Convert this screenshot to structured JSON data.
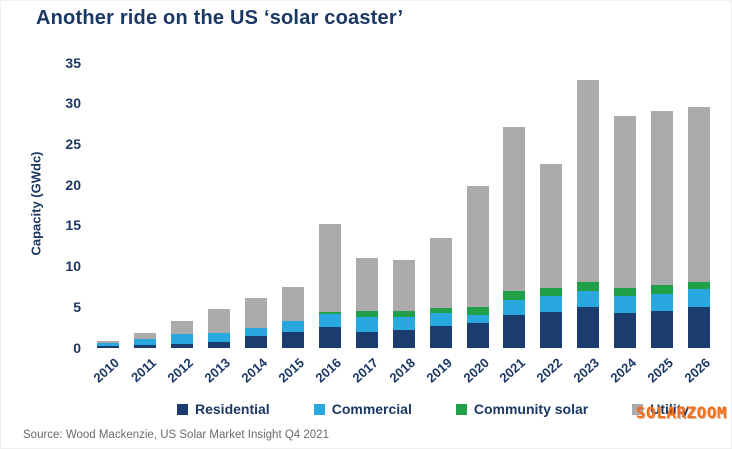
{
  "chart_data": {
    "type": "bar",
    "stacked": true,
    "title": "Another ride on the US ‘solar coaster’",
    "ylabel": "Capacity (GWdc)",
    "ylim": [
      0,
      35
    ],
    "yticks": [
      0,
      5,
      10,
      15,
      20,
      25,
      30,
      35
    ],
    "grid": false,
    "legend_position": "bottom",
    "categories": [
      "2010",
      "2011",
      "2012",
      "2013",
      "2014",
      "2015",
      "2016",
      "2017",
      "2018",
      "2019",
      "2020",
      "2021",
      "2022",
      "2023",
      "2024",
      "2025",
      "2026"
    ],
    "series": [
      {
        "name": "Residential",
        "color": "#1A3C6E",
        "values": [
          0.25,
          0.35,
          0.5,
          0.75,
          1.5,
          2.0,
          2.6,
          2.0,
          2.2,
          2.7,
          3.1,
          4.1,
          4.45,
          5.0,
          4.25,
          4.6,
          5.0
        ]
      },
      {
        "name": "Commercial",
        "color": "#29A8E0",
        "values": [
          0.35,
          0.7,
          1.2,
          1.15,
          0.95,
          1.35,
          1.6,
          1.75,
          1.65,
          1.65,
          1.0,
          1.85,
          1.9,
          1.95,
          2.2,
          2.05,
          2.2
        ]
      },
      {
        "name": "Community solar",
        "color": "#21A04A",
        "values": [
          0,
          0,
          0,
          0,
          0,
          0,
          0.25,
          0.75,
          0.65,
          0.6,
          0.95,
          1.0,
          1.0,
          1.1,
          0.9,
          1.05,
          0.9
        ]
      },
      {
        "name": "Utility",
        "color": "#ABABAB",
        "values": [
          0.25,
          0.85,
          1.6,
          2.85,
          3.75,
          4.15,
          10.75,
          6.5,
          6.3,
          8.6,
          14.85,
          20.15,
          15.25,
          24.85,
          21.1,
          21.4,
          21.55
        ]
      }
    ],
    "totals": [
      0.85,
      1.9,
      3.3,
      4.75,
      6.2,
      7.5,
      15.2,
      11.0,
      10.8,
      13.55,
      19.9,
      27.1,
      22.6,
      32.9,
      28.45,
      29.1,
      29.65
    ]
  },
  "source": {
    "text": "Source: Wood Mackenzie, US Solar Market Insight Q4 2021"
  },
  "watermark": {
    "text": "SOLARZOOM"
  },
  "colors": {
    "title_text": "#1B3764",
    "axis_text": "#1B3764",
    "source_text": "#6B6B6B",
    "watermark_orange": "#F2711D",
    "background": "#FFFFFF"
  }
}
